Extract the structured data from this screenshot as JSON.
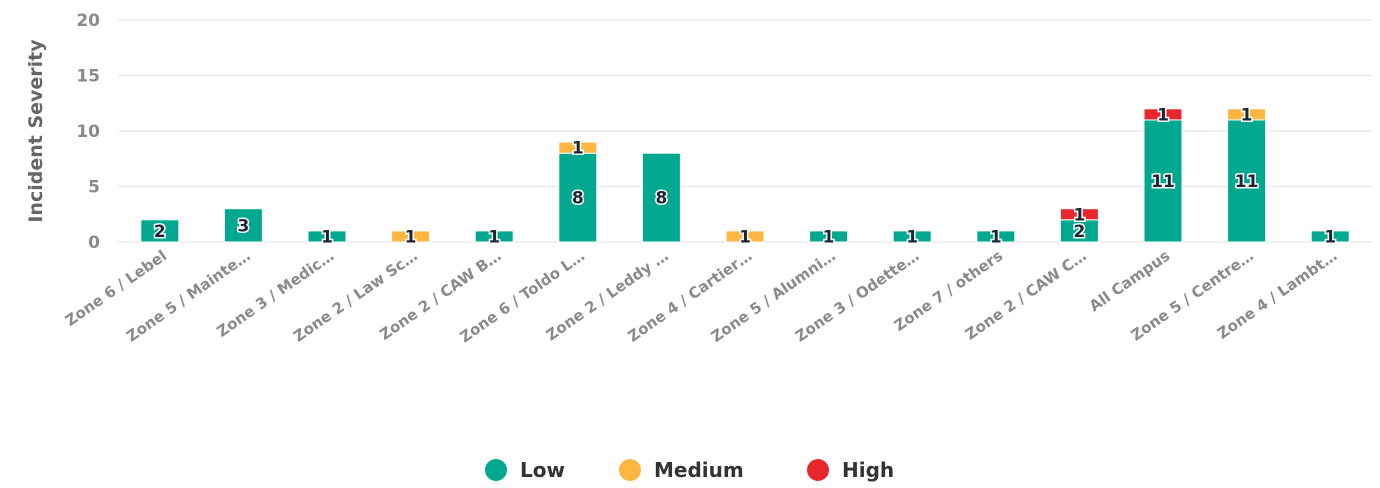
{
  "chart_data": {
    "type": "bar",
    "stacked": true,
    "title": "",
    "xlabel": "",
    "ylabel": "Incident Severity",
    "ylim": [
      0,
      20
    ],
    "yticks": [
      0,
      5,
      10,
      15,
      20
    ],
    "grid": true,
    "legend_position": "bottom",
    "categories": [
      "Zone 6 / Lebel",
      "Zone 5 / Mainte…",
      "Zone 3 / Medic…",
      "Zone 2 / Law Sc…",
      "Zone 2 / CAW B…",
      "Zone 6 / Toldo L…",
      "Zone 2 / Leddy …",
      "Zone 4 / Cartier…",
      "Zone 5 / Alumni…",
      "Zone 3 / Odette…",
      "Zone 7 / others",
      "Zone 2 / CAW C…",
      "All Campus",
      "Zone 5 / Centre…",
      "Zone 4 / Lambt…"
    ],
    "series": [
      {
        "name": "Low",
        "color": "#00a88f",
        "values": [
          2,
          3,
          1,
          0,
          1,
          8,
          8,
          0,
          1,
          1,
          1,
          2,
          11,
          11,
          1
        ]
      },
      {
        "name": "Medium",
        "color": "#ffb641",
        "values": [
          0,
          0,
          0,
          1,
          0,
          1,
          0,
          1,
          0,
          0,
          0,
          0,
          0,
          1,
          0
        ]
      },
      {
        "name": "High",
        "color": "#e8262e",
        "values": [
          0,
          0,
          0,
          0,
          0,
          0,
          0,
          0,
          0,
          0,
          0,
          1,
          1,
          0,
          0
        ]
      }
    ]
  }
}
